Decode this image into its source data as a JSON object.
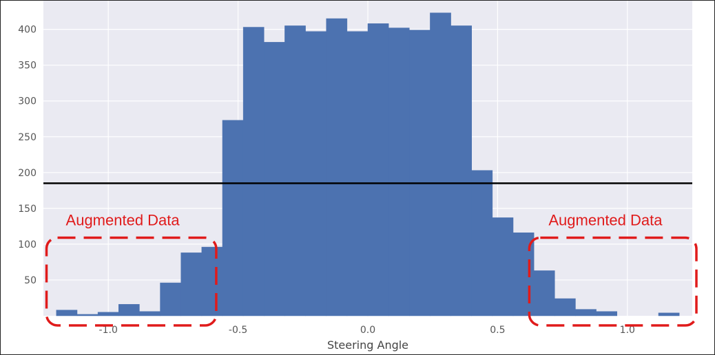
{
  "chart_data": {
    "type": "bar",
    "title": "",
    "xlabel": "Steering Angle",
    "ylabel": "",
    "xlim": [
      -1.25,
      1.25
    ],
    "ylim": [
      0,
      440
    ],
    "grid": true,
    "x_ticks": [
      -1.0,
      -0.5,
      0.0,
      0.5,
      1.0
    ],
    "x_tick_labels": [
      "-1.0",
      "-0.5",
      "0.0",
      "0.5",
      "1.0"
    ],
    "y_ticks": [
      50,
      100,
      150,
      200,
      250,
      300,
      350,
      400
    ],
    "y_tick_labels": [
      "50",
      "100",
      "150",
      "200",
      "250",
      "300",
      "350",
      "400"
    ],
    "bin_width": 0.08,
    "bins": [
      {
        "x0": -1.2,
        "value": 8
      },
      {
        "x0": -1.12,
        "value": 2
      },
      {
        "x0": -1.04,
        "value": 5
      },
      {
        "x0": -0.96,
        "value": 16
      },
      {
        "x0": -0.88,
        "value": 6
      },
      {
        "x0": -0.8,
        "value": 46
      },
      {
        "x0": -0.72,
        "value": 88
      },
      {
        "x0": -0.64,
        "value": 96
      },
      {
        "x0": -0.56,
        "value": 273
      },
      {
        "x0": -0.48,
        "value": 403
      },
      {
        "x0": -0.4,
        "value": 382
      },
      {
        "x0": -0.32,
        "value": 405
      },
      {
        "x0": -0.24,
        "value": 397
      },
      {
        "x0": -0.16,
        "value": 415
      },
      {
        "x0": -0.08,
        "value": 397
      },
      {
        "x0": 0.0,
        "value": 408
      },
      {
        "x0": 0.08,
        "value": 402
      },
      {
        "x0": 0.16,
        "value": 399
      },
      {
        "x0": 0.24,
        "value": 423
      },
      {
        "x0": 0.32,
        "value": 405
      },
      {
        "x0": 0.4,
        "value": 203
      },
      {
        "x0": 0.48,
        "value": 137
      },
      {
        "x0": 0.56,
        "value": 116
      },
      {
        "x0": 0.64,
        "value": 63
      },
      {
        "x0": 0.72,
        "value": 24
      },
      {
        "x0": 0.8,
        "value": 9
      },
      {
        "x0": 0.88,
        "value": 6
      },
      {
        "x0": 0.96,
        "value": 0
      },
      {
        "x0": 1.04,
        "value": 0
      },
      {
        "x0": 1.12,
        "value": 4
      }
    ],
    "reference_line": {
      "y": 185,
      "color": "#000000"
    },
    "annotations": [
      {
        "text": "Augmented Data",
        "region": "left",
        "x_range": [
          -1.23,
          -0.6
        ],
        "y_range": [
          0,
          110
        ]
      },
      {
        "text": "Augmented Data",
        "region": "right",
        "x_range": [
          0.63,
          1.25
        ],
        "y_range": [
          0,
          110
        ]
      }
    ],
    "colors": {
      "bar": "#4c72b0",
      "plot_background": "#eaeaf2",
      "grid": "#ffffff",
      "annotation": "#e01b1b"
    }
  }
}
